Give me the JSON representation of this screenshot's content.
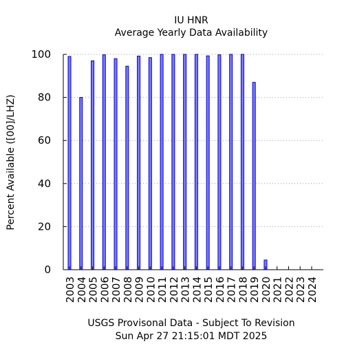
{
  "chart_data": {
    "type": "bar",
    "title": "IU HNR",
    "subtitle": "Average Yearly Data Availability",
    "ylabel": "Percent Available ([00]/LHZ)",
    "xlabel": "USGS Provisonal Data - Subject To Revision",
    "timestamp": "Sun Apr 27 21:15:01 MDT 2025",
    "ylim": [
      0,
      100
    ],
    "yticks": [
      "0",
      "20",
      "40",
      "60",
      "80",
      "100"
    ],
    "grid": "horizontal dotted",
    "bar_color": "#7b7bff",
    "bar_edge_color": "#0000cc",
    "categories": [
      "2003",
      "2004",
      "2005",
      "2006",
      "2007",
      "2008",
      "2009",
      "2010",
      "2011",
      "2012",
      "2013",
      "2014",
      "2015",
      "2016",
      "2017",
      "2018",
      "2019",
      "2020",
      "2021",
      "2022",
      "2023",
      "2024"
    ],
    "values": [
      99,
      80,
      97,
      99.8,
      98,
      94.5,
      99.2,
      98.5,
      100,
      100,
      100,
      100,
      99.3,
      99.8,
      100,
      100,
      87,
      4.5,
      0,
      0,
      0,
      0
    ]
  }
}
